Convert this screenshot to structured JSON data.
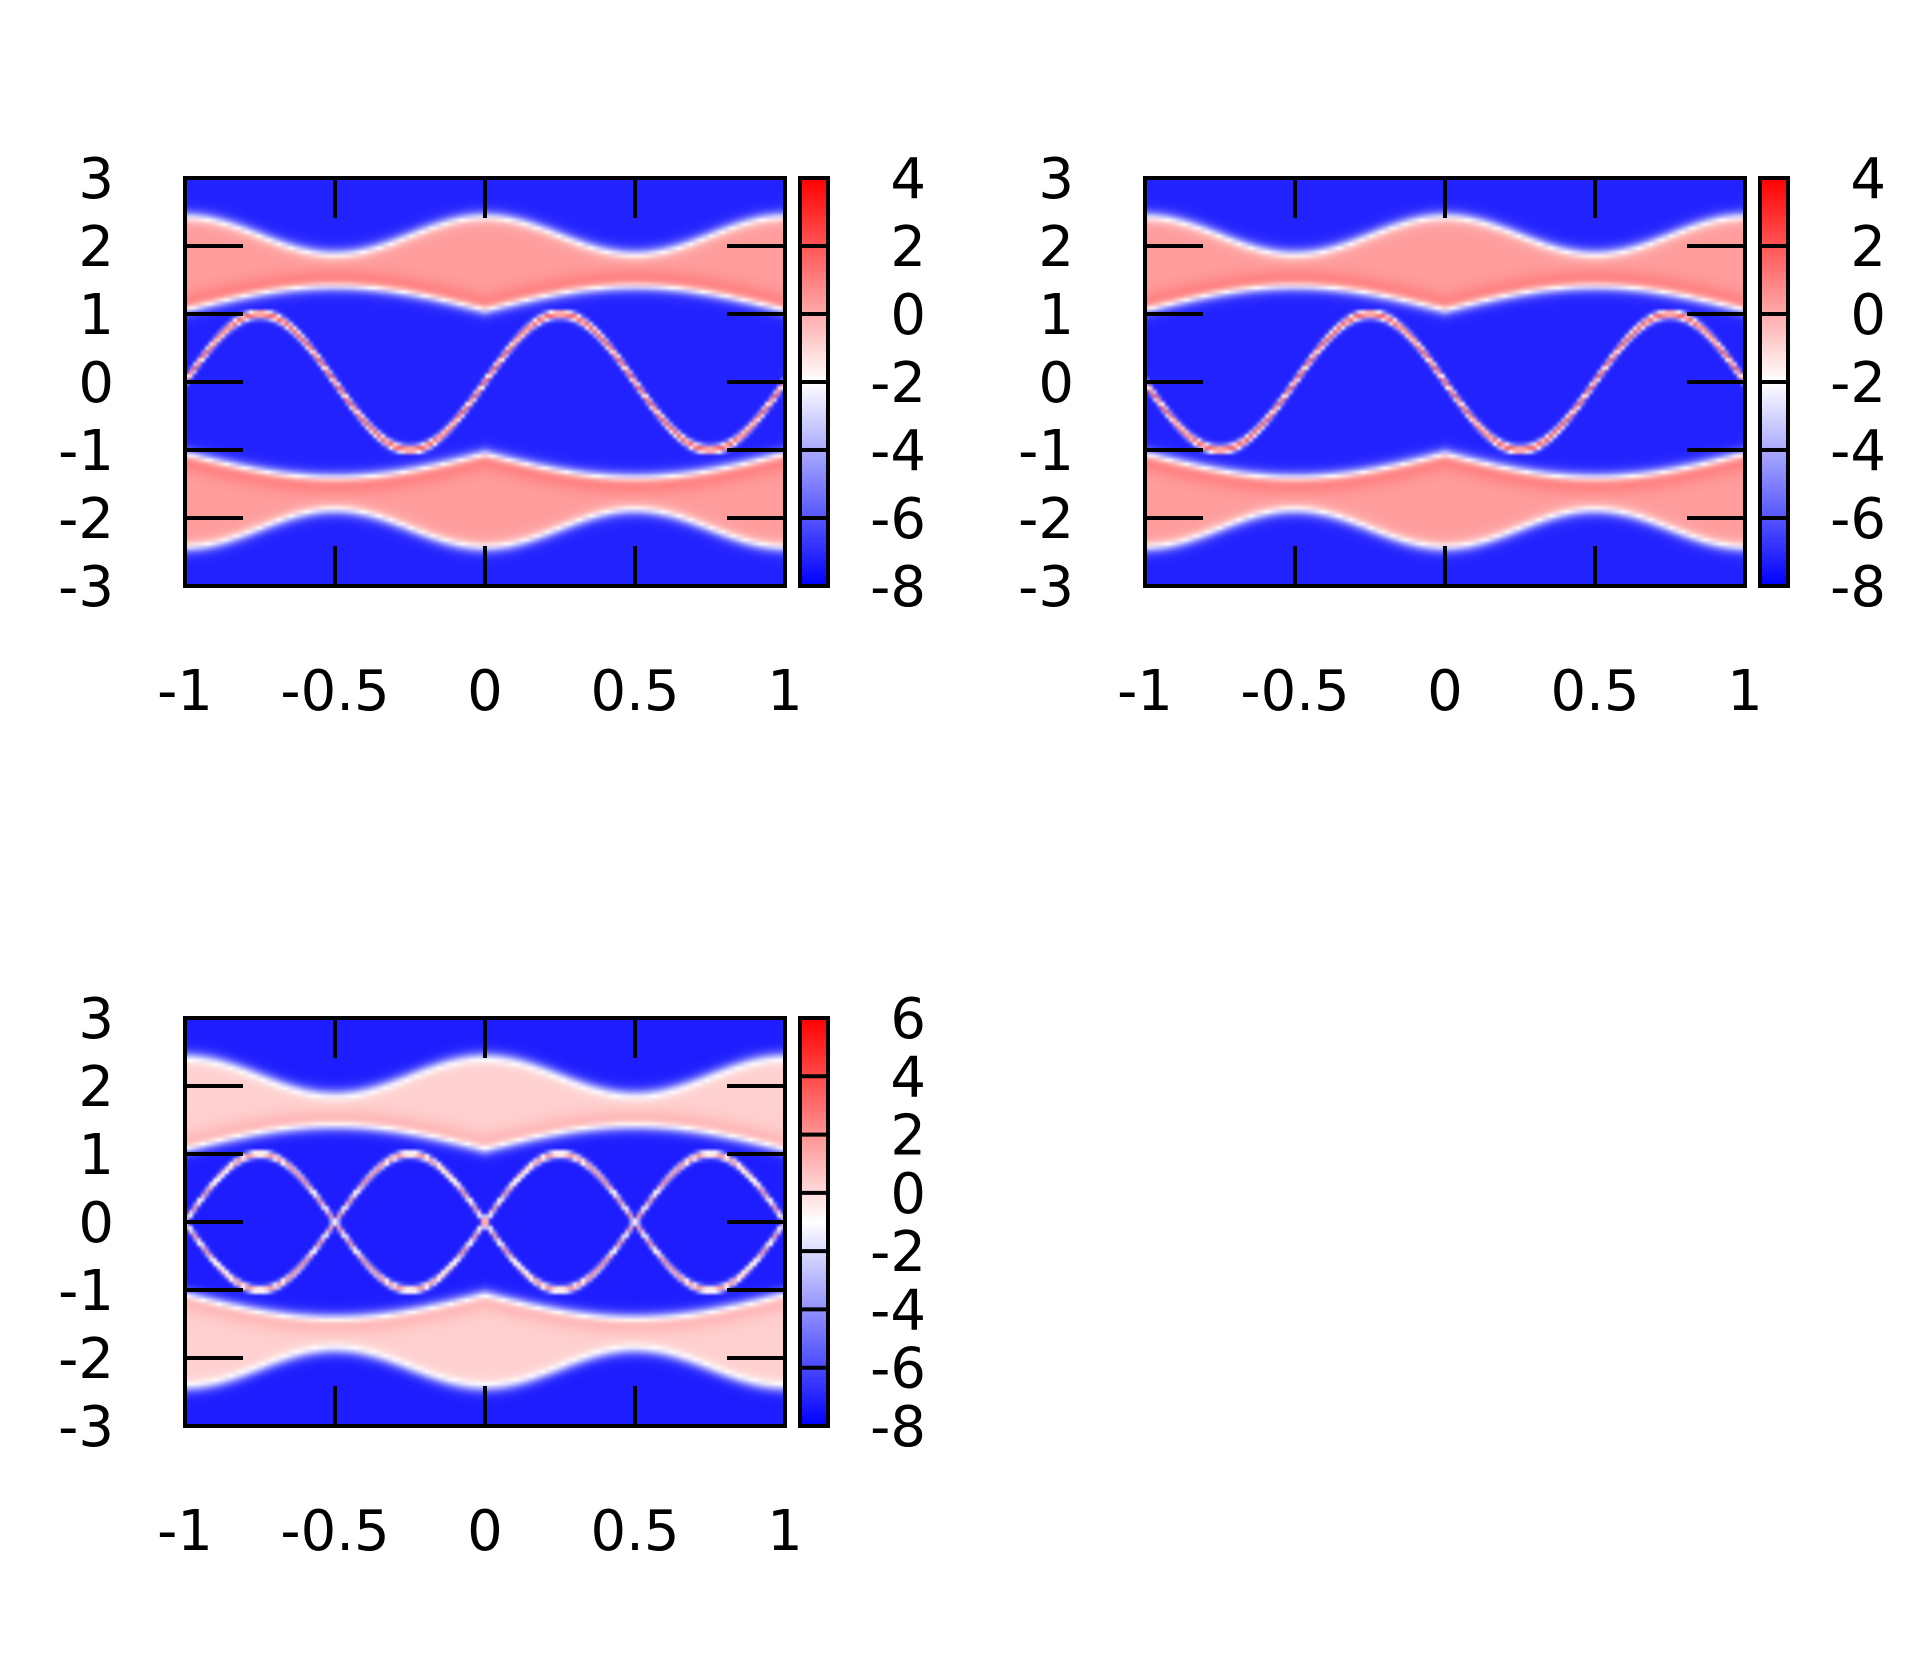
{
  "chart_data": [
    {
      "type": "heatmap",
      "title": "",
      "xlabel": "",
      "ylabel": "",
      "xlim": [
        -1,
        1
      ],
      "ylim": [
        -3,
        3
      ],
      "x_ticks": [
        "-1",
        "-0.5",
        "0",
        "0.5",
        "1"
      ],
      "y_ticks": [
        "3",
        "2",
        "1",
        "0",
        "-1",
        "-2",
        "-3"
      ],
      "colorbar": {
        "range": [
          -8,
          4
        ],
        "ticks": [
          "4",
          "2",
          "0",
          "-2",
          "-4",
          "-6",
          "-8"
        ],
        "colormap": [
          "#0000ff",
          "#ffffff",
          "#ff0000"
        ]
      },
      "variant": 0
    },
    {
      "type": "heatmap",
      "title": "",
      "xlabel": "",
      "ylabel": "",
      "xlim": [
        -1,
        1
      ],
      "ylim": [
        -3,
        3
      ],
      "x_ticks": [
        "-1",
        "-0.5",
        "0",
        "0.5",
        "1"
      ],
      "y_ticks": [
        "3",
        "2",
        "1",
        "0",
        "-1",
        "-2",
        "-3"
      ],
      "colorbar": {
        "range": [
          -8,
          4
        ],
        "ticks": [
          "4",
          "2",
          "0",
          "-2",
          "-4",
          "-6",
          "-8"
        ],
        "colormap": [
          "#0000ff",
          "#ffffff",
          "#ff0000"
        ]
      },
      "variant": 1
    },
    {
      "type": "heatmap",
      "title": "",
      "xlabel": "",
      "ylabel": "",
      "xlim": [
        -1,
        1
      ],
      "ylim": [
        -3,
        3
      ],
      "x_ticks": [
        "-1",
        "-0.5",
        "0",
        "0.5",
        "1"
      ],
      "y_ticks": [
        "3",
        "2",
        "1",
        "0",
        "-1",
        "-2",
        "-3"
      ],
      "colorbar": {
        "range": [
          -8,
          6
        ],
        "ticks": [
          "6",
          "4",
          "2",
          "0",
          "-2",
          "-4",
          "-6",
          "-8"
        ],
        "colormap": [
          "#0000ff",
          "#ffffff",
          "#ff0000"
        ]
      },
      "variant": 2
    }
  ]
}
